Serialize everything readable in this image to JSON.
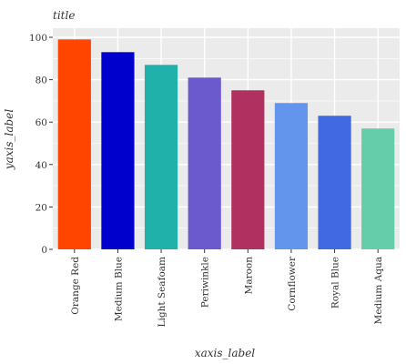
{
  "chart_data": {
    "type": "bar",
    "title": "title",
    "xlabel": "xaxis_label",
    "ylabel": "yaxis_label",
    "categories": [
      "Orange Red",
      "Medium Blue",
      "Light Seafoam",
      "Periwinkle",
      "Maroon",
      "Cornflower",
      "Royal Blue",
      "Medium Aqua"
    ],
    "values": [
      99,
      93,
      87,
      81,
      75,
      69,
      63,
      57
    ],
    "colors": [
      "#ff4500",
      "#0000cd",
      "#20b2aa",
      "#6a5acd",
      "#b03060",
      "#6495ed",
      "#4169e1",
      "#66cdaa"
    ],
    "ylim": [
      0,
      100
    ],
    "yticks": [
      0,
      20,
      40,
      60,
      80,
      100
    ],
    "grid": true,
    "background": "#ebebeb"
  }
}
